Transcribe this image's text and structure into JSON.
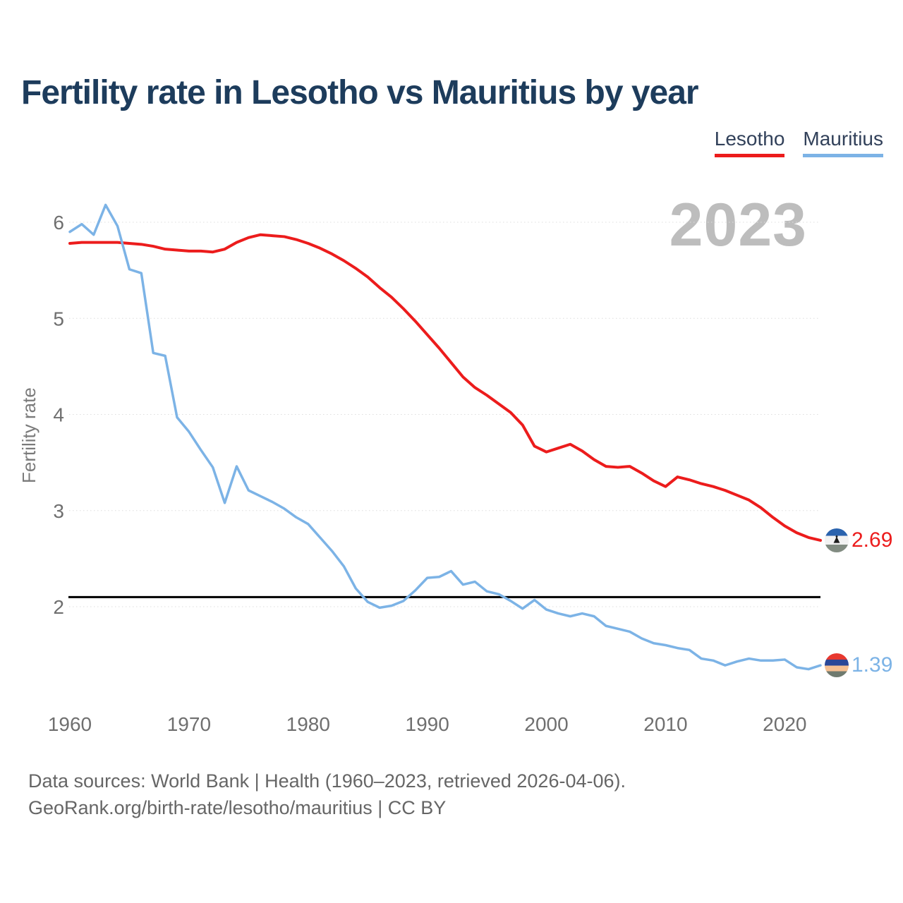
{
  "page": {
    "title": "Fertility rate in Lesotho vs Mauritius by year",
    "watermark": "2023",
    "source_line1": "Data sources: World Bank | Health (1960–2023, retrieved 2026-04-06).",
    "source_line2": "GeoRank.org/birth-rate/lesotho/mauritius | CC BY"
  },
  "legend": {
    "items": [
      {
        "label": "Lesotho",
        "color": "#ec1c1c"
      },
      {
        "label": "Mauritius",
        "color": "#7cb3e6"
      }
    ]
  },
  "chart_data": {
    "type": "line",
    "title": "Fertility rate in Lesotho vs Mauritius by year",
    "xlabel": "",
    "ylabel": "Fertility rate",
    "xlim": [
      1960,
      2023
    ],
    "ylim": [
      1.2,
      6.3
    ],
    "grid": "horizontal-dotted",
    "legend_position": "top-right",
    "x_ticks": [
      1960,
      1970,
      1980,
      1990,
      2000,
      2010,
      2020
    ],
    "y_ticks": [
      2,
      3,
      4,
      5,
      6
    ],
    "reference_line": {
      "value": 2.1,
      "color": "#000000"
    },
    "x": [
      1960,
      1961,
      1962,
      1963,
      1964,
      1965,
      1966,
      1967,
      1968,
      1969,
      1970,
      1971,
      1972,
      1973,
      1974,
      1975,
      1976,
      1977,
      1978,
      1979,
      1980,
      1981,
      1982,
      1983,
      1984,
      1985,
      1986,
      1987,
      1988,
      1989,
      1990,
      1991,
      1992,
      1993,
      1994,
      1995,
      1996,
      1997,
      1998,
      1999,
      2000,
      2001,
      2002,
      2003,
      2004,
      2005,
      2006,
      2007,
      2008,
      2009,
      2010,
      2011,
      2012,
      2013,
      2014,
      2015,
      2016,
      2017,
      2018,
      2019,
      2020,
      2021,
      2022,
      2023
    ],
    "series": [
      {
        "name": "Lesotho",
        "color": "#ec1c1c",
        "end_label": "2.69",
        "end_value": 2.69,
        "values": [
          5.78,
          5.79,
          5.79,
          5.79,
          5.79,
          5.78,
          5.77,
          5.75,
          5.72,
          5.71,
          5.7,
          5.7,
          5.69,
          5.72,
          5.79,
          5.84,
          5.87,
          5.86,
          5.85,
          5.82,
          5.78,
          5.73,
          5.67,
          5.6,
          5.52,
          5.43,
          5.32,
          5.22,
          5.1,
          4.97,
          4.83,
          4.69,
          4.54,
          4.39,
          4.28,
          4.2,
          4.11,
          4.02,
          3.89,
          3.67,
          3.61,
          3.65,
          3.69,
          3.62,
          3.53,
          3.46,
          3.45,
          3.46,
          3.39,
          3.31,
          3.25,
          3.35,
          3.32,
          3.28,
          3.25,
          3.21,
          3.16,
          3.11,
          3.03,
          2.93,
          2.84,
          2.77,
          2.72,
          2.69
        ]
      },
      {
        "name": "Mauritius",
        "color": "#7cb3e6",
        "end_label": "1.39",
        "end_value": 1.39,
        "values": [
          5.9,
          5.98,
          5.87,
          6.18,
          5.96,
          5.51,
          5.47,
          4.64,
          4.61,
          3.97,
          3.82,
          3.63,
          3.45,
          3.08,
          3.46,
          3.21,
          3.15,
          3.09,
          3.02,
          2.93,
          2.86,
          2.72,
          2.58,
          2.42,
          2.19,
          2.05,
          1.99,
          2.01,
          2.06,
          2.17,
          2.3,
          2.31,
          2.37,
          2.23,
          2.26,
          2.16,
          2.13,
          2.06,
          1.98,
          2.07,
          1.97,
          1.93,
          1.9,
          1.93,
          1.9,
          1.8,
          1.77,
          1.74,
          1.67,
          1.62,
          1.6,
          1.57,
          1.55,
          1.46,
          1.44,
          1.39,
          1.43,
          1.46,
          1.44,
          1.44,
          1.45,
          1.37,
          1.35,
          1.39
        ]
      }
    ]
  }
}
